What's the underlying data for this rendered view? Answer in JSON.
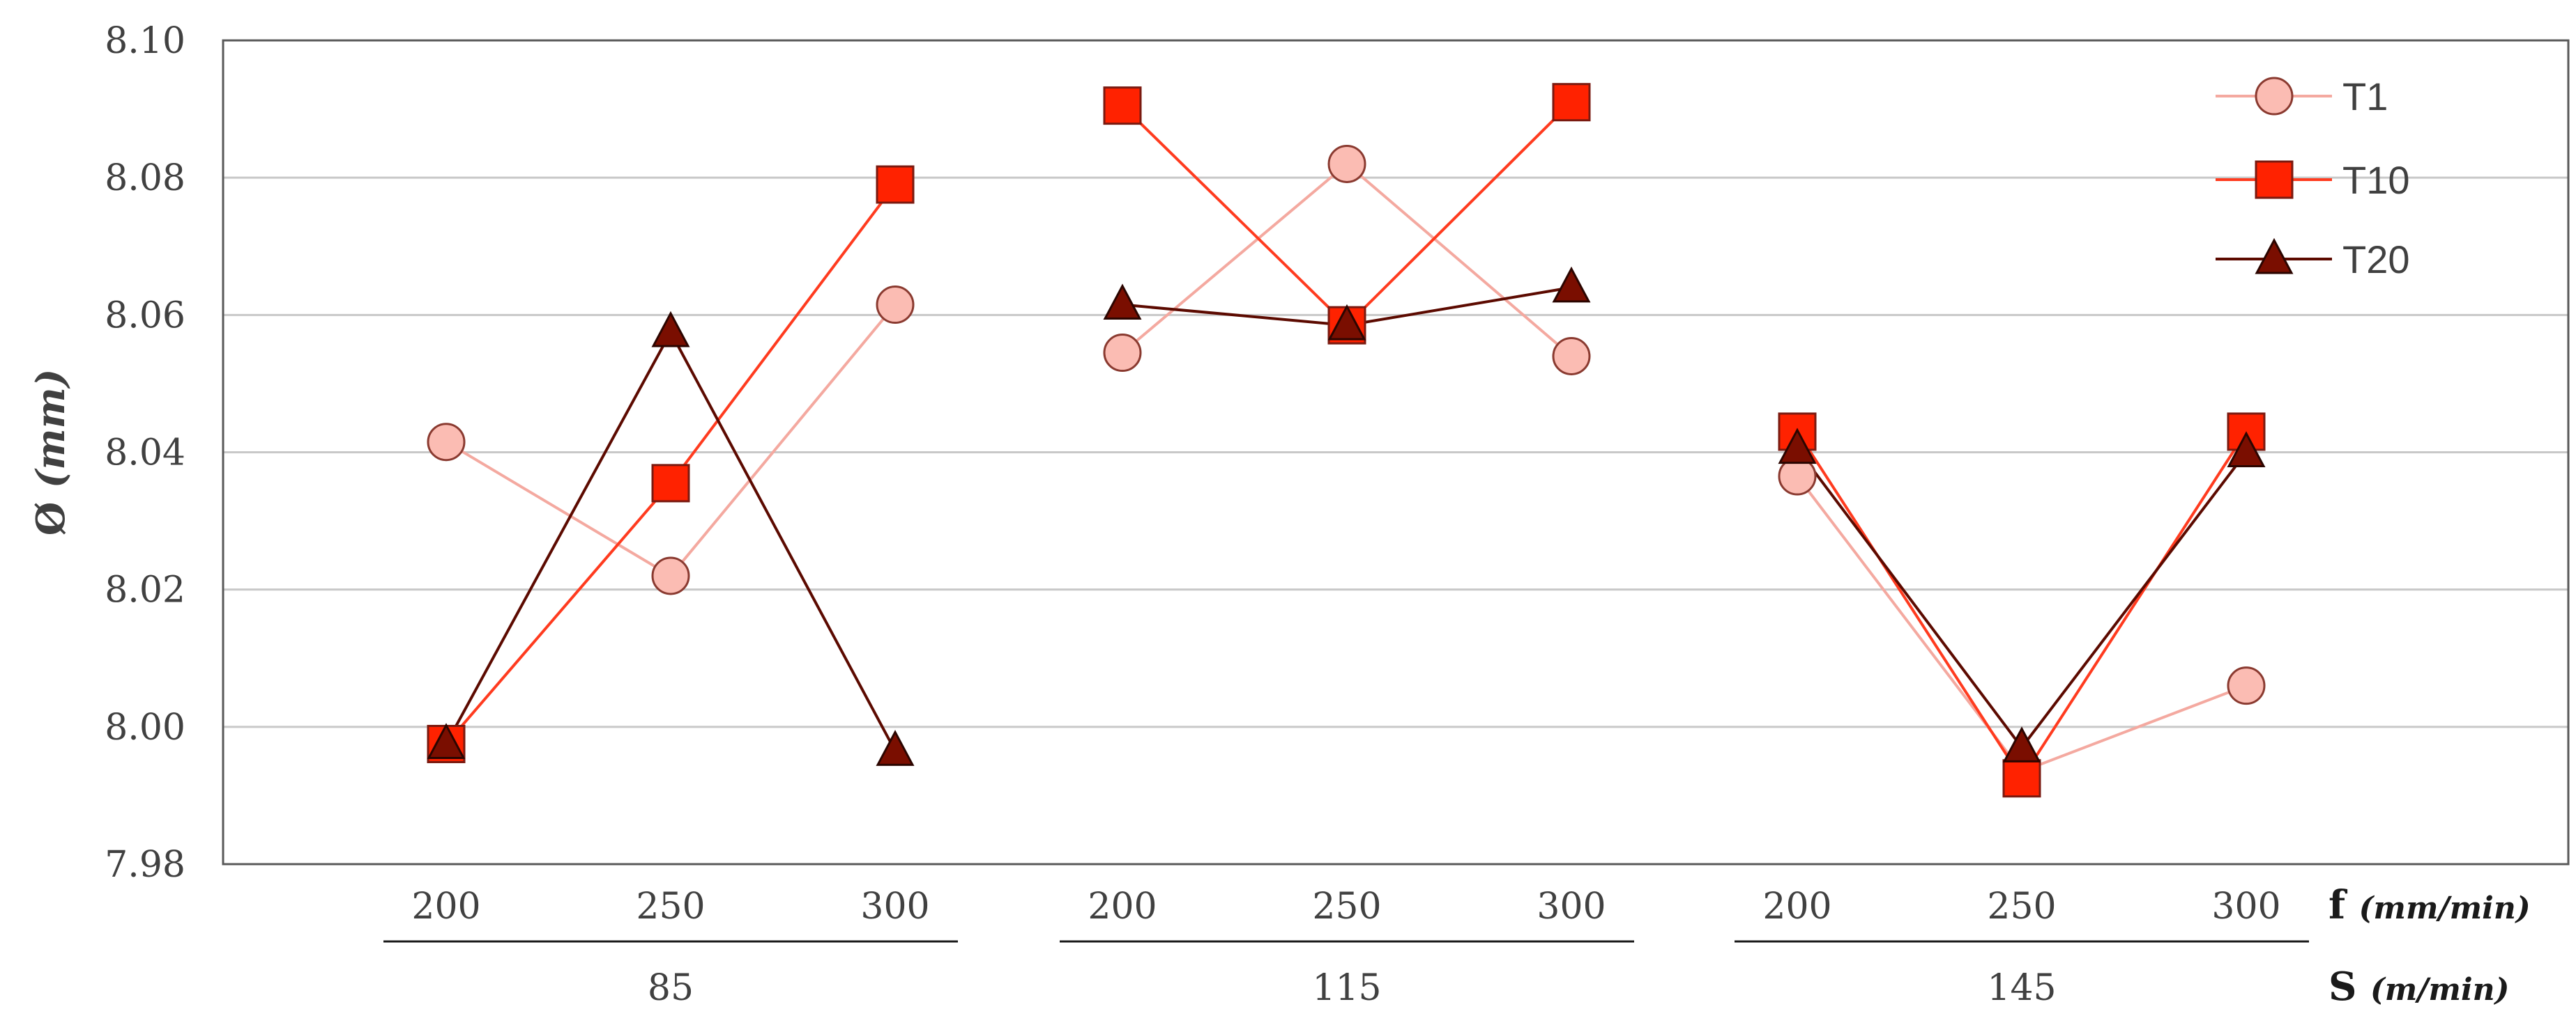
{
  "chart_data": {
    "type": "line",
    "ylabel": {
      "symbol": "Ø",
      "unit": "(mm)"
    },
    "ylim": [
      7.98,
      8.1
    ],
    "yticks": [
      "7.98",
      "8.00",
      "8.02",
      "8.04",
      "8.06",
      "8.08",
      "8.10"
    ],
    "grid": true,
    "legend_position": "top-right",
    "x_levels": {
      "inner": {
        "symbol": "f",
        "unit": "(mm/min)"
      },
      "outer": {
        "symbol": "S",
        "unit": "(m/min)"
      }
    },
    "groups": [
      {
        "label": "85",
        "categories": [
          "200",
          "250",
          "300"
        ]
      },
      {
        "label": "115",
        "categories": [
          "200",
          "250",
          "300"
        ]
      },
      {
        "label": "145",
        "categories": [
          "200",
          "250",
          "300"
        ]
      }
    ],
    "series": [
      {
        "name": "T1",
        "marker": "circle",
        "line_color": "#f4a9a0",
        "fill": "#fbbcb3",
        "stroke": "#8a3a30",
        "values": [
          [
            8.0415,
            8.022,
            8.0615
          ],
          [
            8.0545,
            8.082,
            8.054
          ],
          [
            8.0365,
            7.9935,
            8.006
          ]
        ]
      },
      {
        "name": "T10",
        "marker": "square",
        "line_color": "#ff3b1f",
        "fill": "#ff2200",
        "stroke": "#7a1a10",
        "values": [
          [
            7.9975,
            8.0355,
            8.079
          ],
          [
            8.0905,
            8.0585,
            8.091
          ],
          [
            8.043,
            7.9925,
            8.043
          ]
        ]
      },
      {
        "name": "T20",
        "marker": "triangle",
        "line_color": "#5c0a00",
        "fill": "#7a0e00",
        "stroke": "#2b0500",
        "values": [
          [
            7.9975,
            8.0575,
            7.9965
          ],
          [
            8.0615,
            8.0585,
            8.064
          ],
          [
            8.0405,
            7.997,
            8.04
          ]
        ]
      }
    ]
  }
}
